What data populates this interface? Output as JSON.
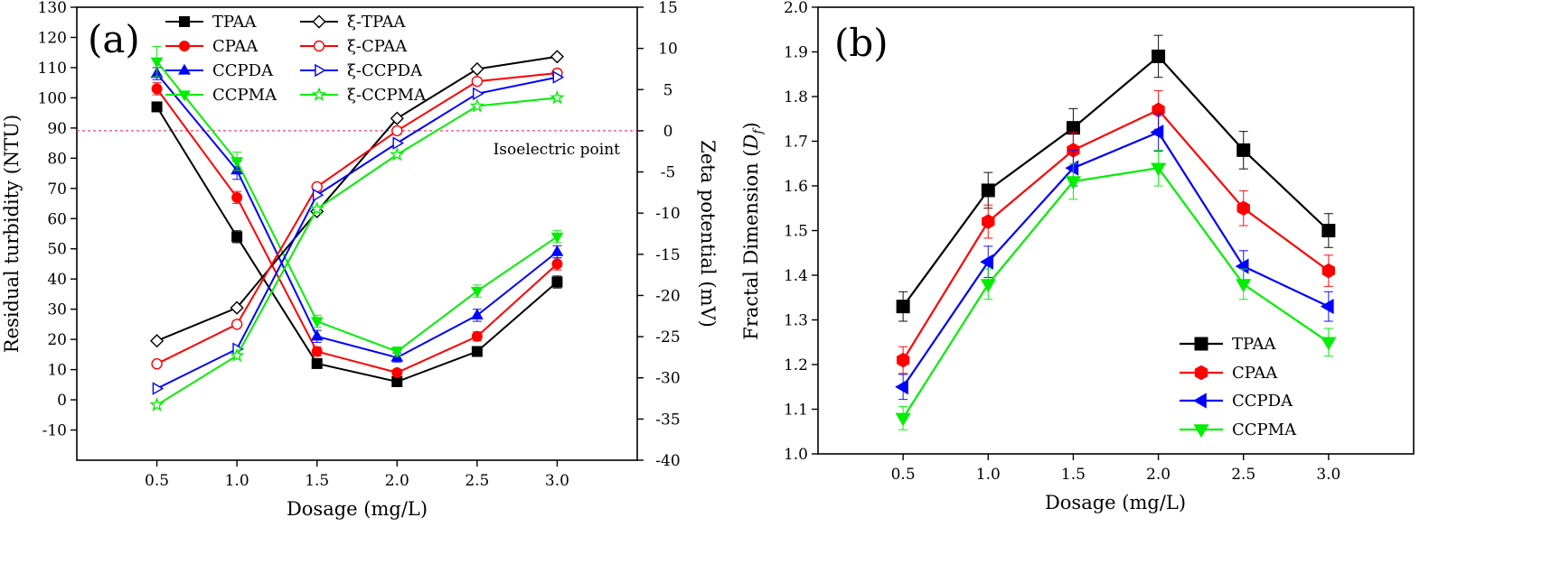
{
  "chart_data": [
    {
      "panel_label": "(a)",
      "type": "line",
      "xlabel": "Dosage (mg/L)",
      "ylabel": "Residual turbidity (NTU)",
      "y2label": "Zeta potential (mV)",
      "x": [
        0.5,
        1.0,
        1.5,
        2.0,
        2.5,
        3.0
      ],
      "x_ticks": [
        "0.5",
        "1.0",
        "1.5",
        "2.0",
        "2.5",
        "3.0"
      ],
      "xlim": [
        0.0,
        3.5
      ],
      "ylim": [
        -20,
        130
      ],
      "y2lim": [
        -40,
        15
      ],
      "y_ticks": [
        "-10",
        "0",
        "10",
        "20",
        "30",
        "40",
        "50",
        "60",
        "70",
        "80",
        "90",
        "100",
        "110",
        "120",
        "130"
      ],
      "y2_ticks": [
        "-40",
        "-35",
        "-30",
        "-25",
        "-20",
        "-15",
        "-10",
        "-5",
        "0",
        "5",
        "10",
        "15"
      ],
      "annotation": {
        "text": "Isoelectric point",
        "y2": 0
      },
      "series": [
        {
          "name": "TPAA",
          "axis": "y",
          "color": "#000000",
          "marker": "square",
          "filled": true,
          "values": [
            97,
            54,
            12,
            6,
            16,
            39
          ],
          "err": [
            1.5,
            2,
            1.5,
            1,
            1.5,
            2
          ]
        },
        {
          "name": "CPAA",
          "axis": "y",
          "color": "#ff0000",
          "marker": "circle",
          "filled": true,
          "values": [
            103,
            67,
            16,
            9,
            21,
            45
          ],
          "err": [
            2,
            2,
            1.5,
            1,
            1.5,
            2
          ]
        },
        {
          "name": "CCPDA",
          "axis": "y",
          "color": "#0000ff",
          "marker": "triangle-up",
          "filled": true,
          "values": [
            108,
            76,
            21,
            14,
            28,
            49
          ],
          "err": [
            2,
            3,
            2,
            1.5,
            2,
            2
          ]
        },
        {
          "name": "CCPMA",
          "axis": "y",
          "color": "#00ee00",
          "marker": "triangle-down",
          "filled": true,
          "values": [
            112,
            79,
            26,
            16,
            36,
            54
          ],
          "err": [
            5,
            3,
            2,
            1.5,
            2,
            2
          ]
        },
        {
          "name": "ξ-TPAA",
          "axis": "y2",
          "color": "#000000",
          "marker": "diamond",
          "filled": false,
          "values": [
            -25.5,
            -21.5,
            -9.8,
            1.5,
            7.5,
            9
          ]
        },
        {
          "name": "ξ-CPAA",
          "axis": "y2",
          "color": "#ff0000",
          "marker": "circle",
          "filled": false,
          "values": [
            -28.3,
            -23.5,
            -6.8,
            0,
            6,
            7
          ]
        },
        {
          "name": "ξ-CCPDA",
          "axis": "y2",
          "color": "#0000ff",
          "marker": "triangle-right",
          "filled": false,
          "values": [
            -31.3,
            -26.5,
            -7.8,
            -1.5,
            4.5,
            6.5
          ]
        },
        {
          "name": "ξ-CCPMA",
          "axis": "y2",
          "color": "#00ee00",
          "marker": "star",
          "filled": false,
          "values": [
            -33.3,
            -27.3,
            -9.5,
            -2.9,
            3,
            4
          ]
        }
      ]
    },
    {
      "panel_label": "(b)",
      "type": "line",
      "xlabel": "Dosage (mg/L)",
      "ylabel_main": "Fractal Dimension (",
      "ylabel_var": "D",
      "ylabel_sub": "f",
      "ylabel_end": ")",
      "x": [
        0.5,
        1.0,
        1.5,
        2.0,
        2.5,
        3.0
      ],
      "x_ticks": [
        "0.5",
        "1.0",
        "1.5",
        "2.0",
        "2.5",
        "3.0"
      ],
      "xlim": [
        0.0,
        3.5
      ],
      "ylim": [
        1.0,
        2.0
      ],
      "y_ticks": [
        "1.0",
        "1.1",
        "1.2",
        "1.3",
        "1.4",
        "1.5",
        "1.6",
        "1.7",
        "1.8",
        "1.9",
        "2.0"
      ],
      "series": [
        {
          "name": "TPAA",
          "color": "#000000",
          "marker": "square",
          "values": [
            1.33,
            1.59,
            1.73,
            1.89,
            1.68,
            1.5
          ],
          "err": [
            0.033,
            0.04,
            0.043,
            0.047,
            0.042,
            0.038
          ]
        },
        {
          "name": "CPAA",
          "color": "#ff0000",
          "marker": "hexagon",
          "values": [
            1.21,
            1.52,
            1.68,
            1.77,
            1.55,
            1.41
          ],
          "err": [
            0.03,
            0.037,
            0.04,
            0.043,
            0.039,
            0.035
          ]
        },
        {
          "name": "CCPDA",
          "color": "#0000ff",
          "marker": "triangle-left",
          "values": [
            1.15,
            1.43,
            1.64,
            1.72,
            1.42,
            1.33
          ],
          "err": [
            0.028,
            0.035,
            0.04,
            0.042,
            0.035,
            0.033
          ]
        },
        {
          "name": "CCPMA",
          "color": "#00ee00",
          "marker": "triangle-down",
          "values": [
            1.08,
            1.38,
            1.61,
            1.64,
            1.38,
            1.25
          ],
          "err": [
            0.026,
            0.034,
            0.04,
            0.04,
            0.034,
            0.031
          ]
        }
      ]
    }
  ]
}
